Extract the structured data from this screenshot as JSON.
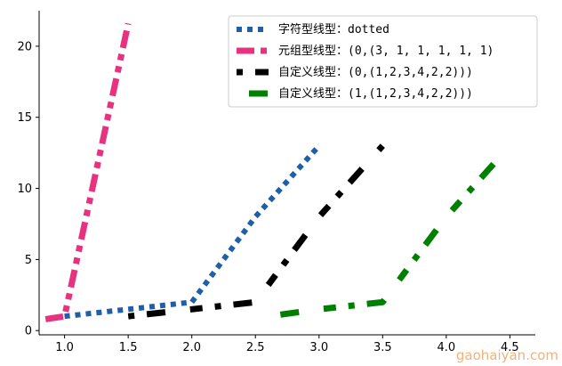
{
  "chart_data": {
    "type": "line",
    "title": "",
    "xlabel": "",
    "ylabel": "",
    "xlim": [
      0.8,
      4.7
    ],
    "ylim": [
      -0.3,
      22.5
    ],
    "grid": false,
    "legend_position": "top-right",
    "x_ticks": [
      1.0,
      1.5,
      2.0,
      2.5,
      3.0,
      3.5,
      4.0,
      4.5
    ],
    "x_tick_labels": [
      "1.0",
      "1.5",
      "2.0",
      "2.5",
      "3.0",
      "3.5",
      "4.0",
      "4.5"
    ],
    "y_ticks": [
      0,
      5,
      10,
      15,
      20
    ],
    "y_tick_labels": [
      "0",
      "5",
      "10",
      "15",
      "20"
    ],
    "series": [
      {
        "name": "字符型线型：dotted",
        "color": "#1f5fa8",
        "x": [
          1.0,
          1.5,
          2.0,
          2.5,
          3.0
        ],
        "y": [
          1.0,
          1.5,
          2.0,
          8.0,
          13.0
        ],
        "dash": [
          6,
          6
        ],
        "width": 6
      },
      {
        "name": "元组型线型：(0,(3, 1, 1, 1, 1, 1)",
        "color": "#e8317f",
        "x": [
          0.85,
          1.0,
          1.5
        ],
        "y": [
          0.8,
          1.0,
          21.6
        ],
        "dash": [
          20,
          7,
          7,
          7,
          7,
          7
        ],
        "width": 7
      },
      {
        "name": "自定义线型：(0,(1,2,3,4,2,2)))",
        "color": "#000000",
        "x": [
          1.5,
          2.0,
          2.5,
          3.0,
          3.5
        ],
        "y": [
          1.0,
          1.5,
          2.0,
          8.0,
          13.0
        ],
        "dash": [
          7,
          14,
          21,
          28,
          14,
          14
        ],
        "width": 7
      },
      {
        "name": "自定义线型：(1,(1,2,3,4,2,2)))",
        "color": "#008000",
        "x": [
          2.6,
          3.0,
          3.5,
          4.0,
          4.5
        ],
        "y": [
          1.0,
          1.5,
          2.0,
          8.0,
          13.0
        ],
        "dash": [
          7,
          14,
          21,
          28,
          14,
          14
        ],
        "dash_offset": 7,
        "width": 7
      }
    ]
  },
  "watermark": "gaohaiyan.com"
}
